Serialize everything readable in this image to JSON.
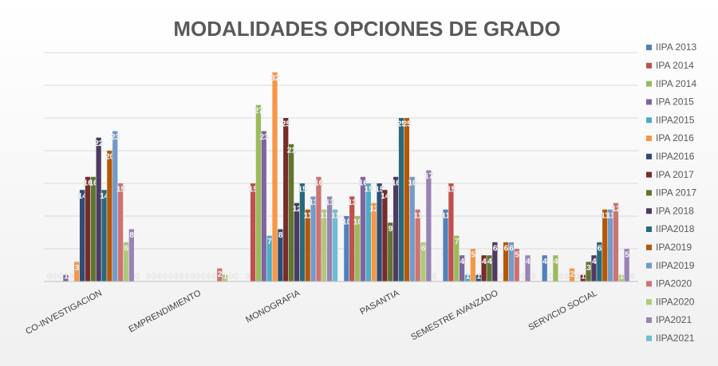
{
  "chart_data": {
    "type": "bar",
    "title": "MODALIDADES OPCIONES DE GRADO",
    "categories": [
      "CO-INVESTIGACION",
      "EMPRENDIMIENTO",
      "MONOGRAFIA",
      "PASANTIA",
      "SEMESTRE AVANZADO",
      "SERVICIO SOCIAL"
    ],
    "series": [
      {
        "name": "IIPA 2013",
        "color": "#4f81bd",
        "values": [
          0,
          0,
          0,
          10,
          11,
          4
        ]
      },
      {
        "name": "IPA 2014",
        "color": "#c0504d",
        "values": [
          0,
          0,
          15,
          13,
          15,
          0
        ]
      },
      {
        "name": "IIPA 2014",
        "color": "#9bbb59",
        "values": [
          0,
          0,
          27,
          10,
          7,
          4
        ]
      },
      {
        "name": "IPA 2015",
        "color": "#8064a2",
        "values": [
          1,
          0,
          23,
          16,
          4,
          0
        ]
      },
      {
        "name": "IIPA2015",
        "color": "#4bacc6",
        "values": [
          0,
          0,
          7,
          15,
          1,
          0
        ]
      },
      {
        "name": "IPA 2016",
        "color": "#f79646",
        "values": [
          3,
          0,
          32,
          12,
          5,
          2
        ]
      },
      {
        "name": "IIPA2016",
        "color": "#2c4d75",
        "values": [
          14,
          0,
          8,
          15,
          1,
          0
        ]
      },
      {
        "name": "IPA 2017",
        "color": "#772c2a",
        "values": [
          16,
          0,
          25,
          14,
          4,
          1
        ]
      },
      {
        "name": "IIPA 2017",
        "color": "#5f7530",
        "values": [
          16,
          0,
          21,
          9,
          4,
          3
        ]
      },
      {
        "name": "IPA 2018",
        "color": "#4d3b62",
        "values": [
          22,
          0,
          12,
          16,
          6,
          4
        ]
      },
      {
        "name": "IIPA2018",
        "color": "#276a7c",
        "values": [
          14,
          0,
          15,
          25,
          0,
          6
        ]
      },
      {
        "name": "IPA2019",
        "color": "#b65708",
        "values": [
          20,
          0,
          11,
          25,
          6,
          11
        ]
      },
      {
        "name": "IIPA2019",
        "color": "#729aca",
        "values": [
          23,
          0,
          13,
          16,
          6,
          11
        ]
      },
      {
        "name": "IPA2020",
        "color": "#cd7371",
        "values": [
          15,
          2,
          16,
          11,
          5,
          12
        ]
      },
      {
        "name": "IIPA2020",
        "color": "#afc97a",
        "values": [
          6,
          1,
          11,
          6,
          0,
          1
        ]
      },
      {
        "name": "IPA2021",
        "color": "#9983b5",
        "values": [
          8,
          0,
          13,
          17,
          4,
          5
        ]
      },
      {
        "name": "IIPA2021",
        "color": "#6fbdd1",
        "values": [
          0,
          0,
          11,
          0,
          0,
          0
        ]
      }
    ],
    "ylim": [
      0,
      35
    ],
    "yticks": [
      0,
      5,
      10,
      15,
      20,
      25,
      30,
      35
    ],
    "grid": true,
    "legend": "right"
  }
}
